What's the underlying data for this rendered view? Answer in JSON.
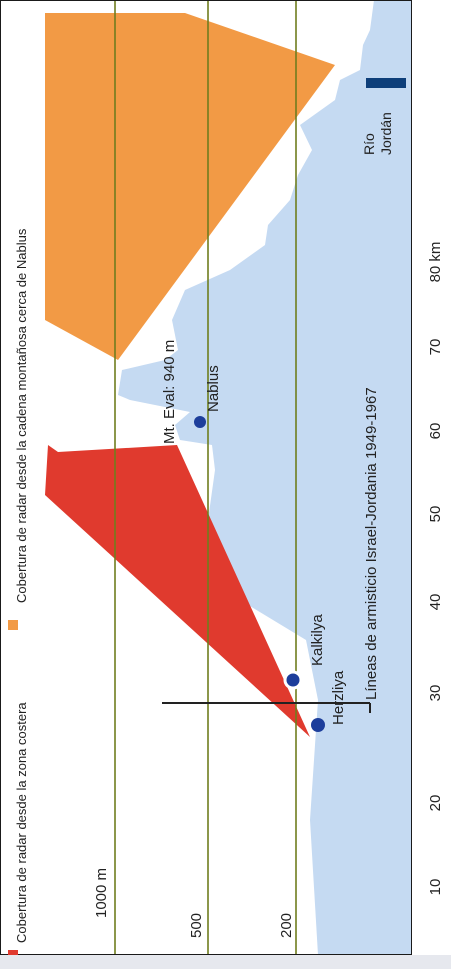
{
  "legend": {
    "coastal": {
      "label": "Cobertura de radar desde la zona costera",
      "color": "#e03a2e"
    },
    "nablus": {
      "label": "Cobertura de radar desde la cadena montañosa cerca de Nablus",
      "color": "#f29a45"
    }
  },
  "terrain_color": "#c5daf2",
  "gridline_color": "#6f7d1e",
  "elevation_levels": [
    {
      "label": "1000 m",
      "value": 1000
    },
    {
      "label": "500",
      "value": 500
    },
    {
      "label": "200",
      "value": 200
    }
  ],
  "distance_ticks": [
    "10",
    "20",
    "30",
    "40",
    "50",
    "60",
    "70",
    "80 km"
  ],
  "places": {
    "herzliya": "Herzliya",
    "kalkilya": "Kalkilya",
    "nablus": "Nablus",
    "mt_eval": "Mt. Eval: 940 m",
    "rio_jordan": [
      "Río",
      "Jordán"
    ],
    "armistice": "Líneas de armisticio Israel-Jordania 1949-1967"
  }
}
